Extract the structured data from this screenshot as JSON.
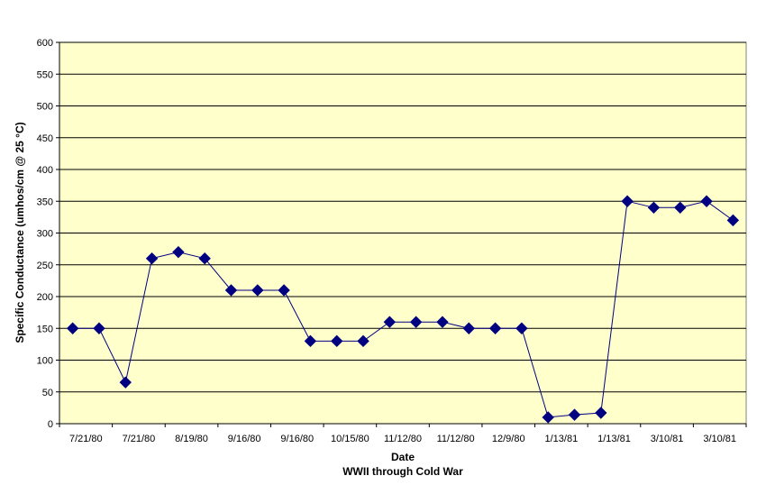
{
  "chart_data": {
    "type": "line",
    "xlabel": "Date",
    "subtitle": "WWII through Cold War",
    "ylabel": "Specific Conductance (umhos/cm @ 25 °C)",
    "ylim": [
      0,
      600
    ],
    "ystep": 50,
    "grid": true,
    "legend": "none",
    "x_tick_labels": [
      "7/21/80",
      "7/21/80",
      "8/19/80",
      "9/16/80",
      "9/16/80",
      "10/15/80",
      "11/12/80",
      "11/12/80",
      "12/9/80",
      "1/13/81",
      "1/13/81",
      "3/10/81",
      "3/10/81"
    ],
    "series": [
      {
        "values": [
          150,
          150,
          65,
          260,
          270,
          260,
          210,
          210,
          210,
          130,
          130,
          130,
          160,
          160,
          160,
          150,
          150,
          150,
          10,
          14,
          17,
          350,
          340,
          340,
          350,
          320
        ]
      }
    ],
    "colors": {
      "plot_background": "#FFFFCC",
      "line": "#000080",
      "marker": "#000080",
      "grid": "#000000"
    }
  }
}
